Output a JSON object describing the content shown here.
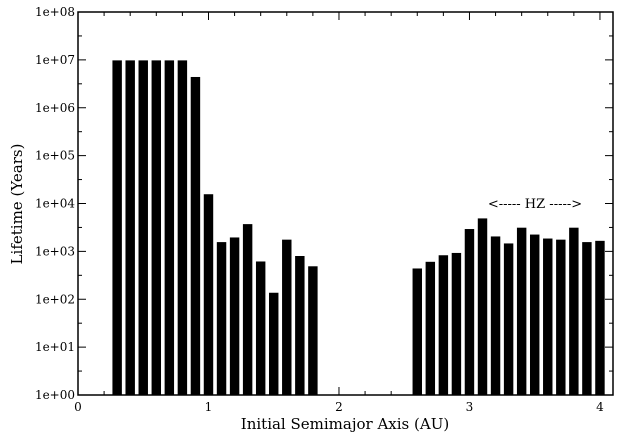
{
  "chart_data": {
    "type": "bar",
    "title": "",
    "xlabel": "Initial Semimajor Axis (AU)",
    "ylabel": "Lifetime (Years)",
    "xlim": [
      0,
      4.1
    ],
    "ylim": [
      1,
      100000000
    ],
    "yscale": "log",
    "grid": false,
    "bar_color": "#000000",
    "bar_width": 0.08,
    "x_ticks": [
      "0",
      "1",
      "2",
      "3",
      "4"
    ],
    "y_ticks": [
      "1e+00",
      "1e+01",
      "1e+02",
      "1e+03",
      "1e+04",
      "1e+05",
      "1e+06",
      "1e+07",
      "1e+08"
    ],
    "annotation": "<----- HZ ----->",
    "x": [
      0.3,
      0.4,
      0.5,
      0.6,
      0.7,
      0.8,
      0.9,
      1.0,
      1.1,
      1.2,
      1.3,
      1.4,
      1.5,
      1.6,
      1.7,
      1.8,
      2.6,
      2.7,
      2.8,
      2.9,
      3.0,
      3.1,
      3.2,
      3.3,
      3.4,
      3.5,
      3.6,
      3.7,
      3.8,
      3.9,
      4.0
    ],
    "values": [
      10000000,
      10000000,
      10000000,
      10000000,
      10000000,
      10000000,
      4500000,
      16000,
      1600,
      2000,
      3800,
      630,
      140,
      1800,
      820,
      500,
      450,
      620,
      850,
      950,
      3000,
      5000,
      2100,
      1500,
      3200,
      2300,
      1900,
      1800,
      3200,
      1600,
      1700
    ]
  }
}
